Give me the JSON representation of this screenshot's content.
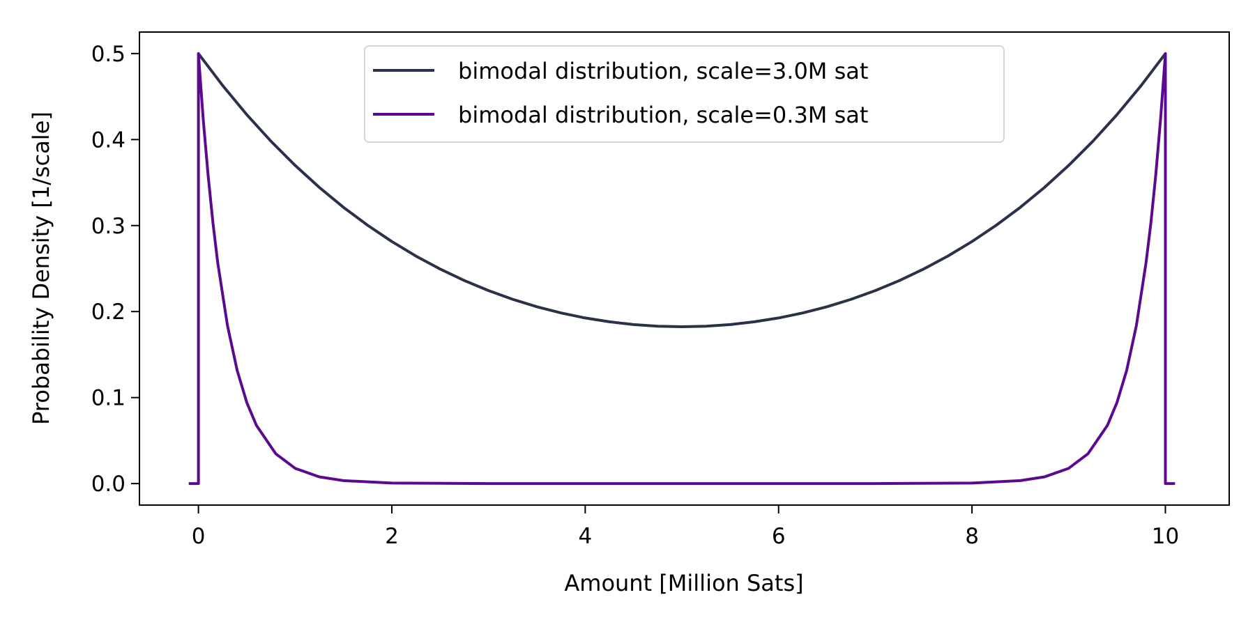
{
  "chart_data": {
    "type": "line",
    "title": "",
    "xlabel": "Amount [Million Sats]",
    "ylabel": "Probability Density [1/scale]",
    "xlim": [
      -0.61,
      10.66
    ],
    "ylim": [
      -0.025,
      0.525
    ],
    "xticks": [
      0,
      2,
      4,
      6,
      8,
      10
    ],
    "xtick_labels": [
      "0",
      "2",
      "4",
      "6",
      "8",
      "10"
    ],
    "yticks": [
      0.0,
      0.1,
      0.2,
      0.3,
      0.4,
      0.5
    ],
    "ytick_labels": [
      "0.0",
      "0.1",
      "0.2",
      "0.3",
      "0.4",
      "0.5"
    ],
    "grid": false,
    "legend_placement": "top-center",
    "series": [
      {
        "name": "bimodal distribution, scale=3.0M sat",
        "color": "#2a3148",
        "x": [
          0,
          0.25,
          0.5,
          0.75,
          1,
          1.25,
          1.5,
          1.75,
          2,
          2.25,
          2.5,
          2.75,
          3,
          3.25,
          3.5,
          3.75,
          4,
          4.25,
          4.5,
          4.75,
          5,
          5.25,
          5.5,
          5.75,
          6,
          6.25,
          6.5,
          6.75,
          7,
          7.25,
          7.5,
          7.75,
          8,
          8.25,
          8.5,
          8.75,
          9,
          9.25,
          9.5,
          9.75,
          10
        ],
        "y": [
          0.5,
          0.4629,
          0.429,
          0.3981,
          0.37,
          0.3444,
          0.3212,
          0.3003,
          0.2814,
          0.2645,
          0.2494,
          0.2361,
          0.2244,
          0.2143,
          0.2056,
          0.1984,
          0.1926,
          0.1881,
          0.1849,
          0.183,
          0.1824,
          0.183,
          0.1849,
          0.1881,
          0.1926,
          0.1984,
          0.2056,
          0.2143,
          0.2244,
          0.2361,
          0.2494,
          0.2645,
          0.2814,
          0.3003,
          0.3212,
          0.3444,
          0.37,
          0.3981,
          0.429,
          0.4629,
          0.5
        ]
      },
      {
        "name": "bimodal distribution, scale=0.3M sat",
        "color": "#5b0a8f",
        "x": [
          -0.1,
          0,
          0,
          0.05,
          0.1,
          0.15,
          0.2,
          0.3,
          0.4,
          0.5,
          0.6,
          0.8,
          1.0,
          1.25,
          1.5,
          2,
          3,
          5,
          7,
          8,
          8.5,
          8.75,
          9,
          9.2,
          9.4,
          9.5,
          9.6,
          9.7,
          9.8,
          9.85,
          9.9,
          9.95,
          10,
          10,
          10.1
        ],
        "y": [
          0,
          0,
          0.5,
          0.4232,
          0.3583,
          0.3033,
          0.2567,
          0.1839,
          0.1318,
          0.0944,
          0.0677,
          0.0347,
          0.0178,
          0.0078,
          0.0034,
          0.0006,
          0,
          0,
          0,
          0.0006,
          0.0034,
          0.0078,
          0.0178,
          0.0347,
          0.0677,
          0.0944,
          0.1318,
          0.1839,
          0.2567,
          0.3033,
          0.3583,
          0.4232,
          0.5,
          0,
          0
        ]
      }
    ]
  }
}
